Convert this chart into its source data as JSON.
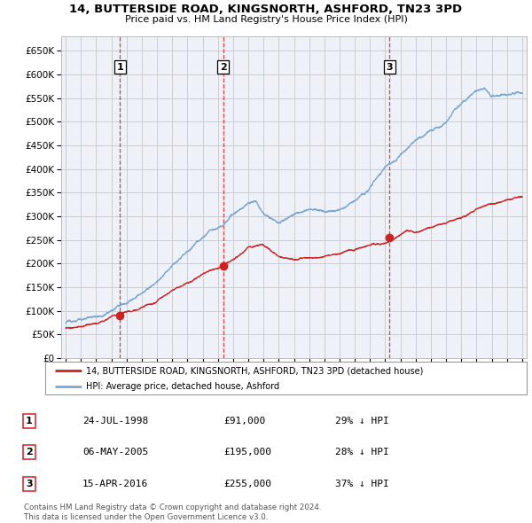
{
  "title": "14, BUTTERSIDE ROAD, KINGSNORTH, ASHFORD, TN23 3PD",
  "subtitle": "Price paid vs. HM Land Registry's House Price Index (HPI)",
  "xlim_start": 1994.7,
  "xlim_end": 2025.3,
  "ylim_min": 0,
  "ylim_max": 680000,
  "yticks": [
    0,
    50000,
    100000,
    150000,
    200000,
    250000,
    300000,
    350000,
    400000,
    450000,
    500000,
    550000,
    600000,
    650000
  ],
  "ytick_labels": [
    "£0",
    "£50K",
    "£100K",
    "£150K",
    "£200K",
    "£250K",
    "£300K",
    "£350K",
    "£400K",
    "£450K",
    "£500K",
    "£550K",
    "£600K",
    "£650K"
  ],
  "xticks": [
    1995,
    1996,
    1997,
    1998,
    1999,
    2000,
    2001,
    2002,
    2003,
    2004,
    2005,
    2006,
    2007,
    2008,
    2009,
    2010,
    2011,
    2012,
    2013,
    2014,
    2015,
    2016,
    2017,
    2018,
    2019,
    2020,
    2021,
    2022,
    2023,
    2024,
    2025
  ],
  "sale_dates": [
    1998.56,
    2005.34,
    2016.29
  ],
  "sale_prices": [
    91000,
    195000,
    255000
  ],
  "sale_labels": [
    "1",
    "2",
    "3"
  ],
  "legend_sale": "14, BUTTERSIDE ROAD, KINGSNORTH, ASHFORD, TN23 3PD (detached house)",
  "legend_hpi": "HPI: Average price, detached house, Ashford",
  "table_rows": [
    [
      "1",
      "24-JUL-1998",
      "£91,000",
      "29% ↓ HPI"
    ],
    [
      "2",
      "06-MAY-2005",
      "£195,000",
      "28% ↓ HPI"
    ],
    [
      "3",
      "15-APR-2016",
      "£255,000",
      "37% ↓ HPI"
    ]
  ],
  "footnote": "Contains HM Land Registry data © Crown copyright and database right 2024.\nThis data is licensed under the Open Government Licence v3.0.",
  "hpi_color": "#7aa8d2",
  "sale_color": "#cc2222",
  "grid_color": "#cccccc",
  "background_color": "#ffffff",
  "plot_bg_color": "#eef2f8"
}
